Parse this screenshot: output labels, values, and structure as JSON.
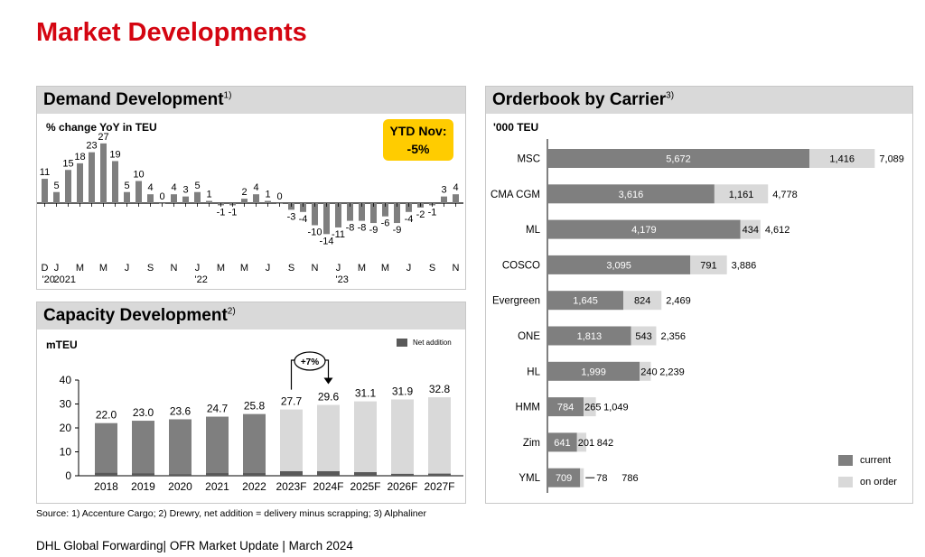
{
  "page_title": "Market Developments",
  "demand": {
    "title": "Demand Development",
    "title_note": "1)",
    "unit": "% change YoY in TEU",
    "ytd_label": "YTD Nov:",
    "ytd_value": "-5%"
  },
  "capacity": {
    "title": "Capacity Development",
    "title_note": "2)",
    "unit": "mTEU",
    "legend_net": "Net addition",
    "growth_label": "+7%"
  },
  "orderbook": {
    "title": "Orderbook by Carrier",
    "title_note": "3)",
    "unit": "'000 TEU",
    "legend_current": "current",
    "legend_on_order": "on order"
  },
  "colors": {
    "brand_red": "#d40511",
    "bar_dark": "#7f7f7f",
    "bar_light": "#d9d9d9",
    "ytd_yellow": "#ffcc00"
  },
  "source_text": "Source: 1) Accenture Cargo; 2) Drewry, net addition = delivery minus scrapping; 3) Alphaliner",
  "footer_text": "DHL Global Forwarding| OFR Market Update | March 2024",
  "chart_data": [
    {
      "type": "bar",
      "title": "Demand Development",
      "ylabel": "% change YoY in TEU",
      "values": [
        11,
        5,
        15,
        18,
        23,
        27,
        19,
        5,
        10,
        4,
        0,
        4,
        3,
        5,
        1,
        -1,
        -1,
        2,
        4,
        1,
        0,
        -3,
        -4,
        -10,
        -14,
        -11,
        -8,
        -8,
        -9,
        -6,
        -9,
        -4,
        -2,
        -1,
        3,
        4
      ],
      "tick_labels": [
        "D",
        "J",
        "",
        "M",
        "",
        "M",
        "",
        "J",
        "",
        "S",
        "",
        "N",
        "",
        "J",
        "",
        "M",
        "",
        "M",
        "",
        "J",
        "",
        "S",
        "",
        "N",
        "",
        "J",
        "",
        "M",
        "",
        "M",
        "",
        "J",
        "",
        "S",
        "",
        "N"
      ],
      "year_labels": [
        {
          "index": 0,
          "label": "'20"
        },
        {
          "index": 1,
          "label": "2021"
        },
        {
          "index": 13,
          "label": "'22"
        },
        {
          "index": 25,
          "label": "'23"
        }
      ],
      "ylim": [
        -15,
        28
      ]
    },
    {
      "type": "bar",
      "title": "Capacity Development",
      "ylabel": "mTEU",
      "categories": [
        "2018",
        "2019",
        "2020",
        "2021",
        "2022",
        "2023F",
        "2024F",
        "2025F",
        "2026F",
        "2027F"
      ],
      "values": [
        22.0,
        23.0,
        23.6,
        24.7,
        25.8,
        27.7,
        29.6,
        31.1,
        31.9,
        32.8
      ],
      "value_labels": [
        "22.0",
        "23.0",
        "23.6",
        "24.7",
        "25.8",
        "27.7",
        "29.6",
        "31.1",
        "31.9",
        "32.8"
      ],
      "forecast_from_index": 5,
      "net_addition": [
        1.2,
        1.0,
        0.6,
        1.1,
        1.1,
        1.9,
        1.9,
        1.5,
        0.8,
        0.9
      ],
      "yticks": [
        0,
        10,
        20,
        30,
        40
      ],
      "ylim": [
        0,
        40
      ],
      "annotation": {
        "label": "+7%",
        "from": "2023F",
        "to": "2024F"
      }
    },
    {
      "type": "bar",
      "orientation": "horizontal",
      "stacked": true,
      "title": "Orderbook by Carrier",
      "ylabel": "'000 TEU",
      "categories": [
        "MSC",
        "CMA CGM",
        "ML",
        "COSCO",
        "Evergreen",
        "ONE",
        "HL",
        "HMM",
        "Zim",
        "YML"
      ],
      "series": [
        {
          "name": "current",
          "values": [
            5672,
            3616,
            4179,
            3095,
            1645,
            1813,
            1999,
            784,
            641,
            709
          ]
        },
        {
          "name": "on order",
          "values": [
            1416,
            1161,
            434,
            791,
            824,
            543,
            240,
            265,
            201,
            78
          ]
        }
      ],
      "current_labels": [
        "5,672",
        "3,616",
        "4,179",
        "3,095",
        "1,645",
        "1,813",
        "1,999",
        "784",
        "641",
        "709"
      ],
      "on_order_labels": [
        "1,416",
        "1,161",
        "434",
        "791",
        "824",
        "543",
        "240",
        "265",
        "201",
        "78"
      ],
      "total_labels": [
        "7,089",
        "4,778",
        "4,612",
        "3,886",
        "2,469",
        "2,356",
        "2,239",
        "1,049",
        "842",
        "786"
      ]
    }
  ]
}
